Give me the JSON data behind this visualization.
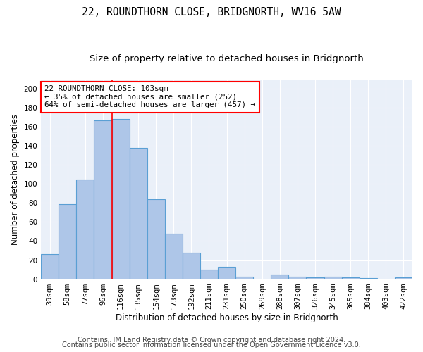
{
  "title1": "22, ROUNDTHORN CLOSE, BRIDGNORTH, WV16 5AW",
  "title2": "Size of property relative to detached houses in Bridgnorth",
  "xlabel": "Distribution of detached houses by size in Bridgnorth",
  "ylabel": "Number of detached properties",
  "bar_categories": [
    "39sqm",
    "58sqm",
    "77sqm",
    "96sqm",
    "116sqm",
    "135sqm",
    "154sqm",
    "173sqm",
    "192sqm",
    "211sqm",
    "231sqm",
    "250sqm",
    "269sqm",
    "288sqm",
    "307sqm",
    "326sqm",
    "345sqm",
    "365sqm",
    "384sqm",
    "403sqm",
    "422sqm"
  ],
  "bar_values": [
    26,
    79,
    105,
    167,
    168,
    138,
    84,
    48,
    28,
    10,
    13,
    3,
    0,
    5,
    3,
    2,
    3,
    2,
    1,
    0,
    2
  ],
  "bar_color": "#aec6e8",
  "bar_edge_color": "#5a9fd4",
  "red_line_x": 3.5,
  "annotation_line1": "22 ROUNDTHORN CLOSE: 103sqm",
  "annotation_line2": "← 35% of detached houses are smaller (252)",
  "annotation_line3": "64% of semi-detached houses are larger (457) →",
  "annotation_box_color": "white",
  "annotation_box_edge": "red",
  "ylim": [
    0,
    210
  ],
  "yticks": [
    0,
    20,
    40,
    60,
    80,
    100,
    120,
    140,
    160,
    180,
    200
  ],
  "footer1": "Contains HM Land Registry data © Crown copyright and database right 2024.",
  "footer2": "Contains public sector information licensed under the Open Government Licence v3.0.",
  "bg_color": "#eaf0f9",
  "grid_color": "#ffffff",
  "title1_fontsize": 10.5,
  "title2_fontsize": 9.5,
  "xlabel_fontsize": 8.5,
  "ylabel_fontsize": 8.5,
  "annot_fontsize": 7.8,
  "tick_fontsize": 7.5,
  "footer_fontsize": 7.0
}
